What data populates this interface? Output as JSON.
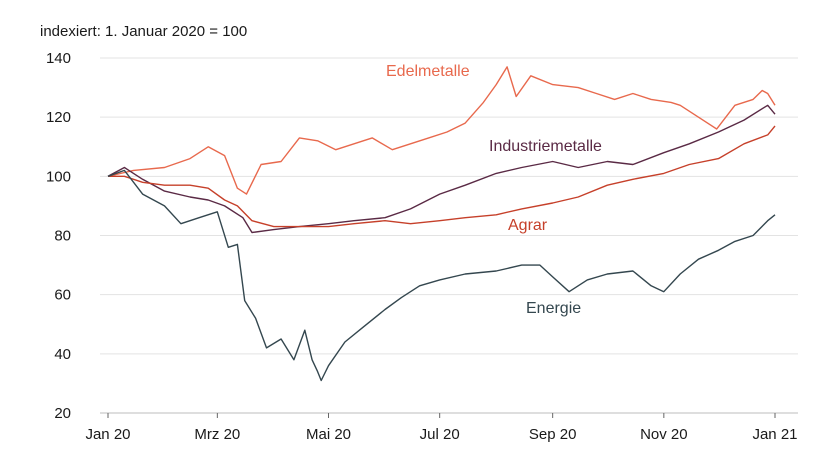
{
  "chart_data": {
    "type": "line",
    "subtitle": "indexiert: 1. Januar 2020 = 100",
    "xlabel": "",
    "ylabel": "",
    "ylim": [
      20,
      140
    ],
    "y_ticks": [
      20,
      40,
      60,
      80,
      100,
      120,
      140
    ],
    "x_ticks": [
      "Jan 20",
      "Mrz 20",
      "Mai 20",
      "Jul 20",
      "Sep 20",
      "Nov 20",
      "Jan 21"
    ],
    "x_tick_dates": [
      "2020-01-01",
      "2020-03-01",
      "2020-05-01",
      "2020-07-01",
      "2020-09-01",
      "2020-11-01",
      "2021-01-01"
    ],
    "grid": "horizontal",
    "legend": "inline labels",
    "series": [
      {
        "name": "Edelmetalle",
        "color": "#e8694d",
        "points": [
          [
            "2020-01-01",
            100
          ],
          [
            "2020-01-15",
            102
          ],
          [
            "2020-02-01",
            103
          ],
          [
            "2020-02-15",
            106
          ],
          [
            "2020-02-25",
            110
          ],
          [
            "2020-03-05",
            107
          ],
          [
            "2020-03-12",
            96
          ],
          [
            "2020-03-17",
            94
          ],
          [
            "2020-03-25",
            104
          ],
          [
            "2020-04-05",
            105
          ],
          [
            "2020-04-15",
            113
          ],
          [
            "2020-04-25",
            112
          ],
          [
            "2020-05-05",
            109
          ],
          [
            "2020-05-15",
            111
          ],
          [
            "2020-05-25",
            113
          ],
          [
            "2020-06-05",
            109
          ],
          [
            "2020-06-15",
            111
          ],
          [
            "2020-06-25",
            113
          ],
          [
            "2020-07-05",
            115
          ],
          [
            "2020-07-15",
            118
          ],
          [
            "2020-07-25",
            125
          ],
          [
            "2020-08-01",
            131
          ],
          [
            "2020-08-07",
            137
          ],
          [
            "2020-08-12",
            127
          ],
          [
            "2020-08-20",
            134
          ],
          [
            "2020-09-01",
            131
          ],
          [
            "2020-09-15",
            130
          ],
          [
            "2020-09-25",
            128
          ],
          [
            "2020-10-05",
            126
          ],
          [
            "2020-10-15",
            128
          ],
          [
            "2020-10-25",
            126
          ],
          [
            "2020-11-05",
            125
          ],
          [
            "2020-11-10",
            124
          ],
          [
            "2020-11-20",
            120
          ],
          [
            "2020-11-30",
            116
          ],
          [
            "2020-12-10",
            124
          ],
          [
            "2020-12-20",
            126
          ],
          [
            "2020-12-25",
            129
          ],
          [
            "2020-12-28",
            128
          ],
          [
            "2021-01-01",
            124
          ]
        ]
      },
      {
        "name": "Industriemetalle",
        "color": "#5a2a45",
        "points": [
          [
            "2020-01-01",
            100
          ],
          [
            "2020-01-10",
            103
          ],
          [
            "2020-01-20",
            99
          ],
          [
            "2020-02-01",
            95
          ],
          [
            "2020-02-15",
            93
          ],
          [
            "2020-02-25",
            92
          ],
          [
            "2020-03-05",
            90
          ],
          [
            "2020-03-15",
            86
          ],
          [
            "2020-03-20",
            81
          ],
          [
            "2020-04-01",
            82
          ],
          [
            "2020-04-15",
            83
          ],
          [
            "2020-05-01",
            84
          ],
          [
            "2020-05-15",
            85
          ],
          [
            "2020-06-01",
            86
          ],
          [
            "2020-06-15",
            89
          ],
          [
            "2020-07-01",
            94
          ],
          [
            "2020-07-15",
            97
          ],
          [
            "2020-08-01",
            101
          ],
          [
            "2020-08-15",
            103
          ],
          [
            "2020-09-01",
            105
          ],
          [
            "2020-09-15",
            103
          ],
          [
            "2020-10-01",
            105
          ],
          [
            "2020-10-15",
            104
          ],
          [
            "2020-11-01",
            108
          ],
          [
            "2020-11-15",
            111
          ],
          [
            "2020-12-01",
            115
          ],
          [
            "2020-12-15",
            119
          ],
          [
            "2020-12-28",
            124
          ],
          [
            "2021-01-01",
            121
          ]
        ]
      },
      {
        "name": "Agrar",
        "color": "#c6402a",
        "points": [
          [
            "2020-01-01",
            100
          ],
          [
            "2020-01-10",
            100
          ],
          [
            "2020-01-20",
            98
          ],
          [
            "2020-02-01",
            97
          ],
          [
            "2020-02-15",
            97
          ],
          [
            "2020-02-25",
            96
          ],
          [
            "2020-03-05",
            92
          ],
          [
            "2020-03-12",
            90
          ],
          [
            "2020-03-20",
            85
          ],
          [
            "2020-04-01",
            83
          ],
          [
            "2020-04-15",
            83
          ],
          [
            "2020-05-01",
            83
          ],
          [
            "2020-05-15",
            84
          ],
          [
            "2020-06-01",
            85
          ],
          [
            "2020-06-15",
            84
          ],
          [
            "2020-07-01",
            85
          ],
          [
            "2020-07-15",
            86
          ],
          [
            "2020-08-01",
            87
          ],
          [
            "2020-08-15",
            89
          ],
          [
            "2020-09-01",
            91
          ],
          [
            "2020-09-15",
            93
          ],
          [
            "2020-10-01",
            97
          ],
          [
            "2020-10-15",
            99
          ],
          [
            "2020-11-01",
            101
          ],
          [
            "2020-11-15",
            104
          ],
          [
            "2020-12-01",
            106
          ],
          [
            "2020-12-15",
            111
          ],
          [
            "2020-12-28",
            114
          ],
          [
            "2021-01-01",
            117
          ]
        ]
      },
      {
        "name": "Energie",
        "color": "#34474f",
        "points": [
          [
            "2020-01-01",
            100
          ],
          [
            "2020-01-10",
            102
          ],
          [
            "2020-01-20",
            94
          ],
          [
            "2020-02-01",
            90
          ],
          [
            "2020-02-10",
            84
          ],
          [
            "2020-02-20",
            86
          ],
          [
            "2020-03-01",
            88
          ],
          [
            "2020-03-07",
            76
          ],
          [
            "2020-03-12",
            77
          ],
          [
            "2020-03-16",
            58
          ],
          [
            "2020-03-22",
            52
          ],
          [
            "2020-03-28",
            42
          ],
          [
            "2020-04-05",
            45
          ],
          [
            "2020-04-12",
            38
          ],
          [
            "2020-04-18",
            48
          ],
          [
            "2020-04-22",
            38
          ],
          [
            "2020-04-25",
            34
          ],
          [
            "2020-04-27",
            31
          ],
          [
            "2020-05-01",
            36
          ],
          [
            "2020-05-10",
            44
          ],
          [
            "2020-05-20",
            49
          ],
          [
            "2020-06-01",
            55
          ],
          [
            "2020-06-10",
            59
          ],
          [
            "2020-06-20",
            63
          ],
          [
            "2020-07-01",
            65
          ],
          [
            "2020-07-15",
            67
          ],
          [
            "2020-08-01",
            68
          ],
          [
            "2020-08-15",
            70
          ],
          [
            "2020-08-25",
            70
          ],
          [
            "2020-09-01",
            66
          ],
          [
            "2020-09-10",
            61
          ],
          [
            "2020-09-20",
            65
          ],
          [
            "2020-10-01",
            67
          ],
          [
            "2020-10-15",
            68
          ],
          [
            "2020-10-25",
            63
          ],
          [
            "2020-11-01",
            61
          ],
          [
            "2020-11-10",
            67
          ],
          [
            "2020-11-20",
            72
          ],
          [
            "2020-12-01",
            75
          ],
          [
            "2020-12-10",
            78
          ],
          [
            "2020-12-20",
            80
          ],
          [
            "2020-12-28",
            85
          ],
          [
            "2021-01-01",
            87
          ]
        ]
      }
    ]
  }
}
